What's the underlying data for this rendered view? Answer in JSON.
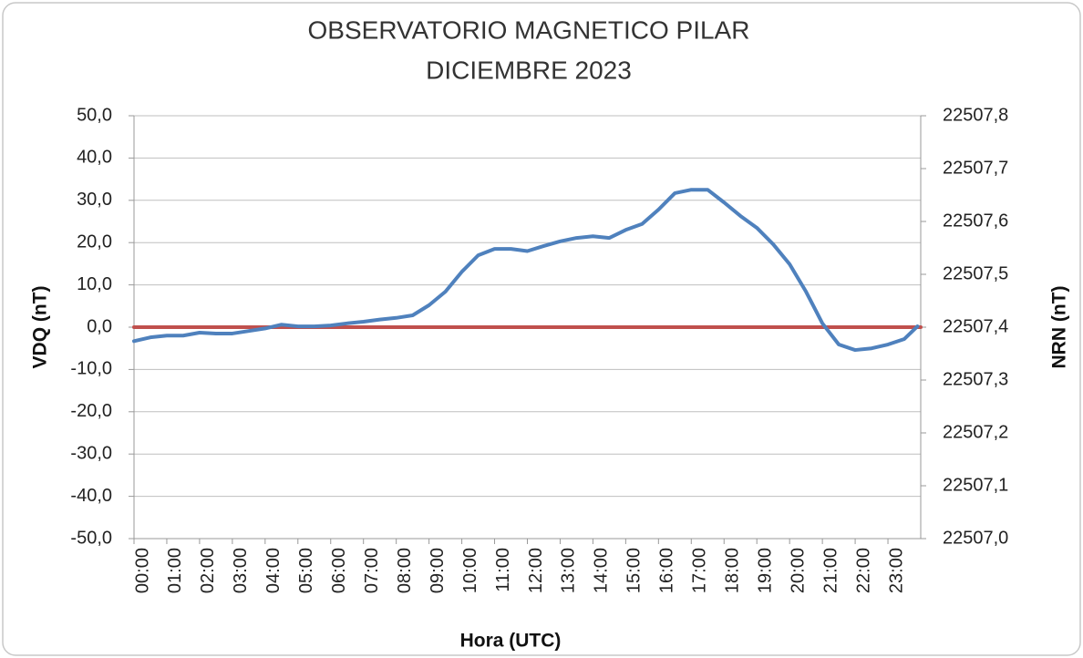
{
  "chart_data": {
    "type": "line",
    "title": "OBSERVATORIO MAGNETICO PILAR",
    "subtitle": "DICIEMBRE 2023",
    "y_label": "VDQ (nT)",
    "y2_label": "NRN (nT)",
    "x_label": "Hora (UTC)",
    "grid": true,
    "xlim": [
      0,
      24
    ],
    "xticks": [
      {
        "value": 0,
        "label": "00:00"
      },
      {
        "value": 1,
        "label": "01:00"
      },
      {
        "value": 2,
        "label": "02:00"
      },
      {
        "value": 3,
        "label": "03:00"
      },
      {
        "value": 4,
        "label": "04:00"
      },
      {
        "value": 5,
        "label": "05:00"
      },
      {
        "value": 6,
        "label": "06:00"
      },
      {
        "value": 7,
        "label": "07:00"
      },
      {
        "value": 8,
        "label": "08:00"
      },
      {
        "value": 9,
        "label": "09:00"
      },
      {
        "value": 10,
        "label": "10:00"
      },
      {
        "value": 11,
        "label": "11:00"
      },
      {
        "value": 12,
        "label": "12:00"
      },
      {
        "value": 13,
        "label": "13:00"
      },
      {
        "value": 14,
        "label": "14:00"
      },
      {
        "value": 15,
        "label": "15:00"
      },
      {
        "value": 16,
        "label": "16:00"
      },
      {
        "value": 17,
        "label": "17:00"
      },
      {
        "value": 18,
        "label": "18:00"
      },
      {
        "value": 19,
        "label": "19:00"
      },
      {
        "value": 20,
        "label": "20:00"
      },
      {
        "value": 21,
        "label": "21:00"
      },
      {
        "value": 22,
        "label": "22:00"
      },
      {
        "value": 23,
        "label": "23:00"
      }
    ],
    "ylim": [
      -50,
      50
    ],
    "yticks": [
      {
        "value": 50,
        "label": "50,0"
      },
      {
        "value": 40,
        "label": "40,0"
      },
      {
        "value": 30,
        "label": "30,0"
      },
      {
        "value": 20,
        "label": "20,0"
      },
      {
        "value": 10,
        "label": "10,0"
      },
      {
        "value": 0,
        "label": "0,0"
      },
      {
        "value": -10,
        "label": "-10,0"
      },
      {
        "value": -20,
        "label": "-20,0"
      },
      {
        "value": -30,
        "label": "-30,0"
      },
      {
        "value": -40,
        "label": "-40,0"
      },
      {
        "value": -50,
        "label": "-50,0"
      }
    ],
    "y2lim": [
      22507.0,
      22507.8
    ],
    "y2ticks": [
      {
        "value": 22507.8,
        "label": "22507,8"
      },
      {
        "value": 22507.7,
        "label": "22507,7"
      },
      {
        "value": 22507.6,
        "label": "22507,6"
      },
      {
        "value": 22507.5,
        "label": "22507,5"
      },
      {
        "value": 22507.4,
        "label": "22507,4"
      },
      {
        "value": 22507.3,
        "label": "22507,3"
      },
      {
        "value": 22507.2,
        "label": "22507,2"
      },
      {
        "value": 22507.1,
        "label": "22507,1"
      },
      {
        "value": 22507.0,
        "label": "22507,0"
      }
    ],
    "series": [
      {
        "color": "#4f81bd",
        "x": [
          0,
          0.5,
          1,
          1.5,
          2,
          2.5,
          3,
          3.5,
          4,
          4.5,
          5,
          5.5,
          6,
          6.5,
          7,
          7.5,
          8,
          8.5,
          9,
          9.5,
          10,
          10.5,
          11,
          11.5,
          12,
          12.5,
          13,
          13.5,
          14,
          14.5,
          15,
          15.5,
          16,
          16.5,
          17,
          17.5,
          18,
          18.5,
          19,
          19.5,
          20,
          20.5,
          21,
          21.5,
          22,
          22.5,
          23,
          23.5,
          23.9
        ],
        "values": [
          -3.3,
          -2.4,
          -2,
          -2,
          -1.3,
          -1.5,
          -1.5,
          -0.9,
          -0.3,
          0.6,
          0.2,
          0.2,
          0.4,
          0.9,
          1.3,
          1.8,
          2.2,
          2.8,
          5.2,
          8.4,
          13.1,
          17,
          18.5,
          18.5,
          18,
          19.2,
          20.3,
          21.1,
          21.5,
          21.1,
          23,
          24.4,
          27.8,
          31.7,
          32.5,
          32.5,
          29.5,
          26.3,
          23.5,
          19.6,
          14.9,
          8.4,
          0.9,
          -4.1,
          -5.4,
          -5,
          -4.1,
          -2.8,
          0.2
        ]
      },
      {
        "color": "#c0504d",
        "axis": "y2",
        "x": [
          0,
          24
        ],
        "values": [
          22507.4,
          22507.4
        ]
      }
    ]
  }
}
